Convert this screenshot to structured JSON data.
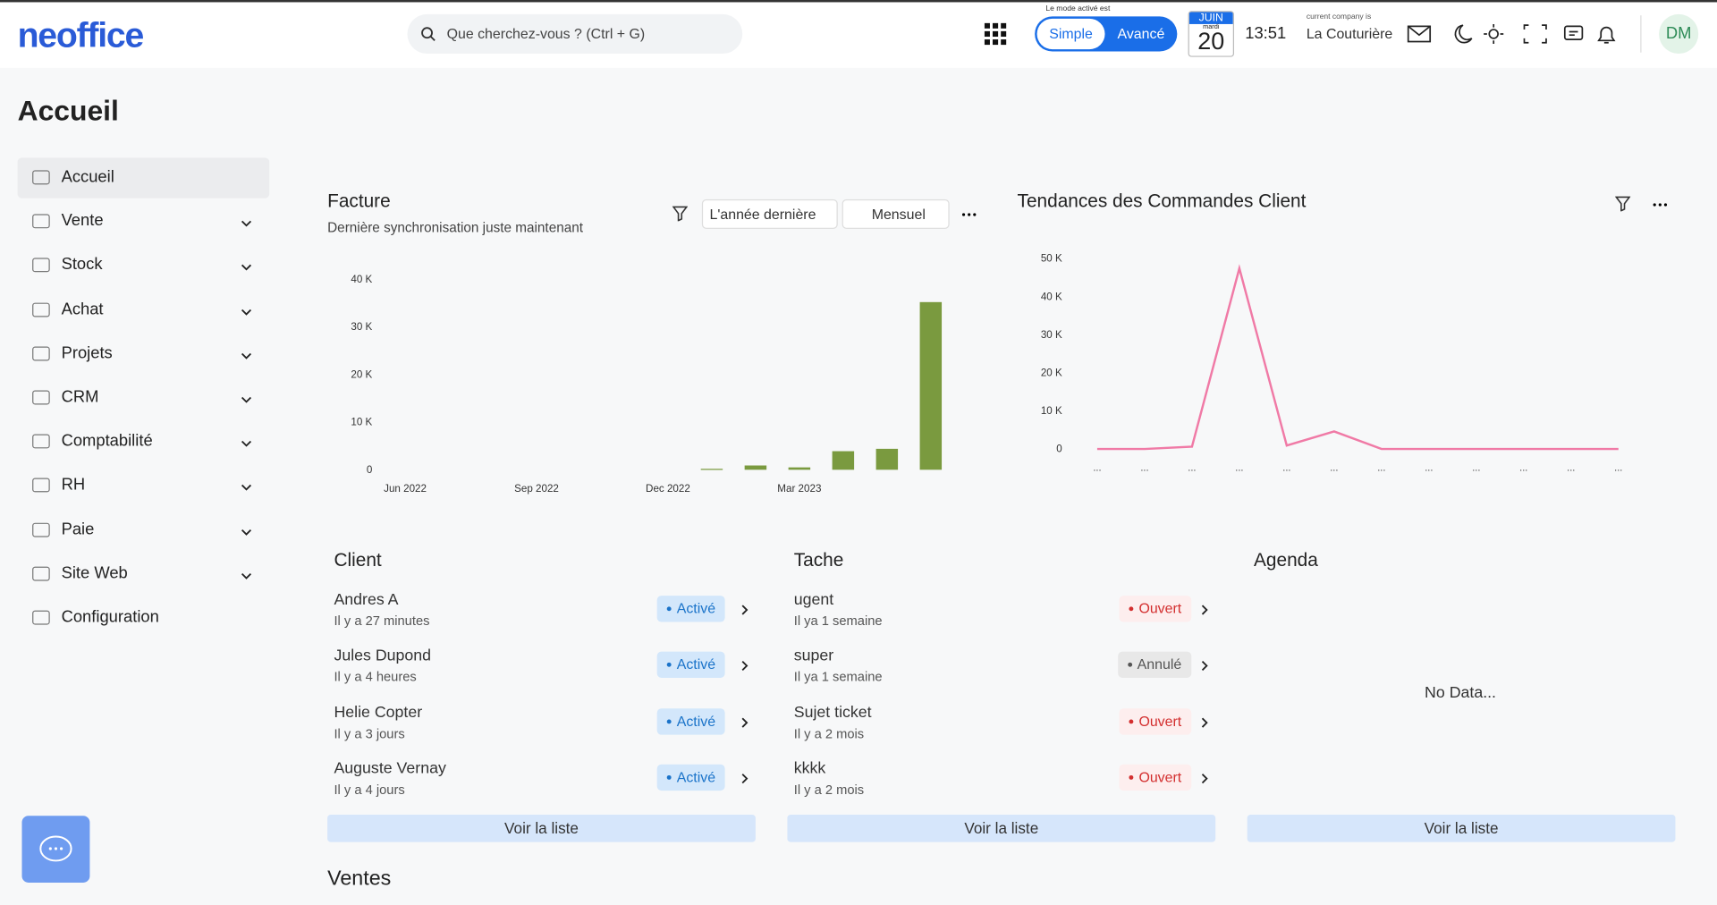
{
  "header": {
    "logo": "neoffice",
    "search_placeholder": "Que cherchez-vous ? (Ctrl + G)",
    "mode_label": "Le mode activé est",
    "modes": [
      "Simple",
      "Avancé"
    ],
    "active_mode": 1,
    "calendar": {
      "month": "JUIN",
      "day_name": "mardi",
      "day": "20"
    },
    "time": "13:51",
    "company_label": "current company is",
    "company": "La Couturière",
    "avatar": "DM"
  },
  "page_title": "Accueil",
  "sidebar": {
    "items": [
      {
        "label": "Accueil",
        "expandable": false
      },
      {
        "label": "Vente",
        "expandable": true
      },
      {
        "label": "Stock",
        "expandable": true
      },
      {
        "label": "Achat",
        "expandable": true
      },
      {
        "label": "Projets",
        "expandable": true
      },
      {
        "label": "CRM",
        "expandable": true
      },
      {
        "label": "Comptabilité",
        "expandable": true
      },
      {
        "label": "RH",
        "expandable": true
      },
      {
        "label": "Paie",
        "expandable": true
      },
      {
        "label": "Site Web",
        "expandable": true
      },
      {
        "label": "Configuration",
        "expandable": false
      }
    ],
    "active": 0
  },
  "facture": {
    "title": "Facture",
    "subtitle": "Dernière synchronisation juste maintenant",
    "filters": [
      "L'année dernière",
      "Mensuel"
    ],
    "chart": {
      "type": "bar",
      "categories": [
        "Jun 2022",
        null,
        null,
        "Sep 2022",
        null,
        null,
        "Dec 2022",
        null,
        null,
        "Mar 2023",
        null,
        null,
        null
      ],
      "values": [
        0,
        0,
        0,
        0,
        0,
        0,
        0,
        200,
        900,
        500,
        3900,
        4400,
        35200
      ],
      "color": "#7a9a3f",
      "ylim": [
        0,
        40000
      ],
      "yticks": [
        0,
        {
          "value": 10000,
          "label": "10 K"
        },
        {
          "value": 20000,
          "label": "20 K"
        },
        {
          "value": 30000,
          "label": "30 K"
        },
        {
          "value": 40000,
          "label": "40 K"
        }
      ]
    }
  },
  "tendances": {
    "title": "Tendances des Commandes Client",
    "chart": {
      "type": "line",
      "categories": [
        "...",
        "...",
        "...",
        "...",
        "...",
        "...",
        "...",
        "...",
        "...",
        "...",
        "...",
        "..."
      ],
      "values": [
        0,
        0,
        600,
        47400,
        900,
        4600,
        0,
        0,
        0,
        0,
        0,
        0
      ],
      "color": "#f07aa6",
      "ylim": [
        0,
        50000
      ],
      "yticks": [
        0,
        {
          "value": 10000,
          "label": "10 K"
        },
        {
          "value": 20000,
          "label": "20 K"
        },
        {
          "value": 30000,
          "label": "30 K"
        },
        {
          "value": 40000,
          "label": "40 K"
        },
        {
          "value": 50000,
          "label": "50 K"
        }
      ]
    }
  },
  "client": {
    "title": "Client",
    "button": "Voir la liste",
    "items": [
      {
        "name": "Andres A",
        "time": "Il y a 27 minutes",
        "status": "Activé",
        "status_color": "#1a73c9",
        "status_bg": "#d3e7fb"
      },
      {
        "name": "Jules Dupond",
        "time": "Il y a 4 heures",
        "status": "Activé",
        "status_color": "#1a73c9",
        "status_bg": "#d3e7fb"
      },
      {
        "name": "Helie Copter",
        "time": "Il y a 3 jours",
        "status": "Activé",
        "status_color": "#1a73c9",
        "status_bg": "#d3e7fb"
      },
      {
        "name": "Auguste Vernay",
        "time": "Il y a 4 jours",
        "status": "Activé",
        "status_color": "#1a73c9",
        "status_bg": "#d3e7fb"
      }
    ]
  },
  "tache": {
    "title": "Tache",
    "button": "Voir la liste",
    "items": [
      {
        "name": "ugent",
        "time": "Il ya 1 semaine",
        "status": "Ouvert",
        "status_color": "#d32f2f",
        "status_bg": "#fdeeee"
      },
      {
        "name": "super",
        "time": "Il ya 1 semaine",
        "status": "Annulé",
        "status_color": "#555555",
        "status_bg": "#e8e8e8"
      },
      {
        "name": "Sujet ticket",
        "time": "Il y a 2 mois",
        "status": "Ouvert",
        "status_color": "#d32f2f",
        "status_bg": "#fdeeee"
      },
      {
        "name": "kkkk",
        "time": "Il y a 2 mois",
        "status": "Ouvert",
        "status_color": "#d32f2f",
        "status_bg": "#fdeeee"
      }
    ]
  },
  "agenda": {
    "title": "Agenda",
    "empty": "No Data...",
    "button": "Voir la liste"
  },
  "ventes_title": "Ventes"
}
